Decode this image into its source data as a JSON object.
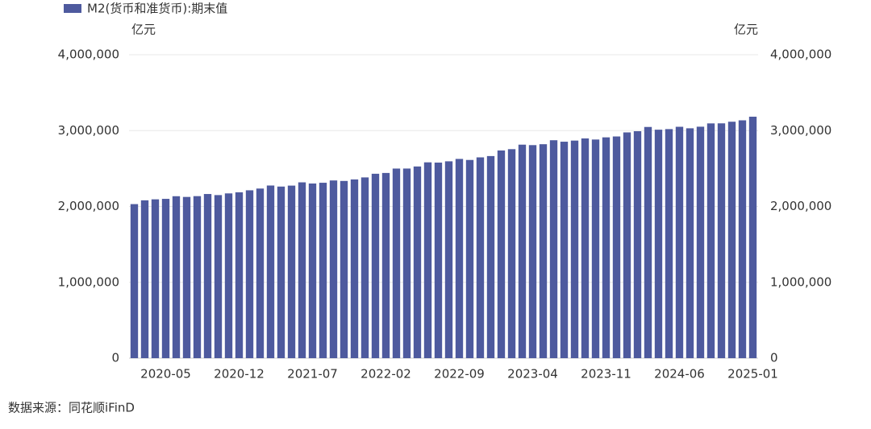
{
  "chart_data": {
    "type": "bar",
    "legend": "M2(货币和准货币):期末值",
    "y_unit": "亿元",
    "y2_unit": "亿元",
    "source": "数据来源：同花顺iFinD",
    "color": "#4e5a9e",
    "categories": [
      null,
      null,
      null,
      "2020-05",
      null,
      null,
      null,
      null,
      null,
      null,
      "2020-12",
      null,
      null,
      null,
      null,
      null,
      null,
      "2021-07",
      null,
      null,
      null,
      null,
      null,
      null,
      "2022-02",
      null,
      null,
      null,
      null,
      null,
      null,
      "2022-09",
      null,
      null,
      null,
      null,
      null,
      null,
      "2023-04",
      null,
      null,
      null,
      null,
      null,
      null,
      "2023-11",
      null,
      null,
      null,
      null,
      null,
      null,
      "2024-06",
      null,
      null,
      null,
      null,
      null,
      null,
      "2025-01"
    ],
    "values": [
      2030800,
      2080900,
      2094000,
      2100200,
      2134900,
      2125500,
      2136000,
      2164100,
      2149800,
      2172100,
      2186800,
      2213000,
      2236000,
      2276000,
      2262100,
      2274800,
      2317800,
      2302500,
      2312300,
      2342800,
      2336200,
      2356100,
      2382900,
      2431000,
      2441500,
      2499400,
      2499700,
      2527000,
      2581500,
      2578100,
      2595100,
      2626600,
      2612900,
      2647100,
      2664300,
      2738100,
      2755300,
      2814600,
      2808500,
      2820500,
      2873000,
      2853600,
      2868300,
      2896700,
      2882300,
      2910900,
      2922700,
      2976200,
      2991900,
      3047900,
      3011900,
      3019600,
      3050200,
      3030200,
      3051300,
      3094800,
      3095500,
      3117000,
      3135300,
      3183200
    ],
    "ylim": [
      0,
      4000000
    ],
    "yticks": [
      0,
      {
        "value": 1000000,
        "label": "1,000,000"
      },
      {
        "value": 2000000,
        "label": "2,000,000"
      },
      {
        "value": 3000000,
        "label": "3,000,000"
      },
      {
        "value": 4000000,
        "label": "4,000,000"
      }
    ],
    "y2lim": [
      0,
      4000000
    ],
    "y2ticks": [
      0,
      {
        "value": 1000000,
        "label": "1,000,000"
      },
      {
        "value": 2000000,
        "label": "2,000,000"
      },
      {
        "value": 3000000,
        "label": "3,000,000"
      },
      {
        "value": 4000000,
        "label": "4,000,000"
      }
    ],
    "grid": true
  }
}
